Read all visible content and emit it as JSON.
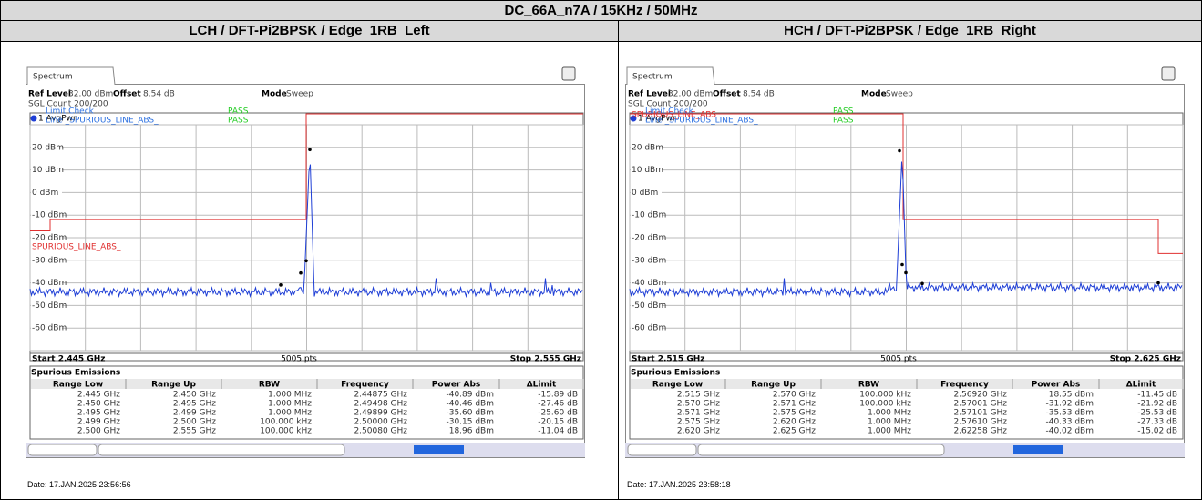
{
  "header": {
    "title": "DC_66A_n7A / 15KHz / 50MHz"
  },
  "panels": [
    {
      "heading": "LCH / DFT-Pi2BPSK / Edge_1RB_Left",
      "screen": {
        "tab": "Spectrum",
        "ref_level_label": "Ref Level",
        "ref_level": "32.00 dBm",
        "offset_label": "Offset",
        "offset": "8.54 dB",
        "mode_label": "Mode",
        "mode": "Sweep",
        "sgl_count": "SGL Count 200/200",
        "trace": "1 AvgPwr",
        "limit_check": "Limit Check",
        "limit_check_result": "PASS",
        "line": "Line _SPURIOUS_LINE_ABS_",
        "line_result": "PASS",
        "limit_line_label": "SPURIOUS_LINE_ABS_",
        "y_labels": [
          "20 dBm",
          "10 dBm",
          "0 dBm",
          "-10 dBm",
          "-20 dBm",
          "-30 dBm",
          "-40 dBm",
          "-50 dBm",
          "-60 dBm"
        ],
        "start": "Start 2.445 GHz",
        "points": "5005 pts",
        "stop": "Stop 2.555 GHz",
        "table_title": "Spurious Emissions",
        "columns": [
          "Range Low",
          "Range Up",
          "RBW",
          "Frequency",
          "Power Abs",
          "ΔLimit"
        ],
        "rows": [
          [
            "2.445 GHz",
            "2.450 GHz",
            "1.000 MHz",
            "2.44875 GHz",
            "-40.89 dBm",
            "-15.89 dB"
          ],
          [
            "2.450 GHz",
            "2.495 GHz",
            "1.000 MHz",
            "2.49498 GHz",
            "-40.46 dBm",
            "-27.46 dB"
          ],
          [
            "2.495 GHz",
            "2.499 GHz",
            "1.000 MHz",
            "2.49899 GHz",
            "-35.60 dBm",
            "-25.60 dB"
          ],
          [
            "2.499 GHz",
            "2.500 GHz",
            "100.000 kHz",
            "2.50000 GHz",
            "-30.15 dBm",
            "-20.15 dB"
          ],
          [
            "2.500 GHz",
            "2.555 GHz",
            "100.000 kHz",
            "2.50080 GHz",
            "18.96 dBm",
            "-11.04 dB"
          ]
        ]
      },
      "date": "Date: 17.JAN.2025 23:56:56"
    },
    {
      "heading": "HCH / DFT-Pi2BPSK / Edge_1RB_Right",
      "screen": {
        "tab": "Spectrum",
        "ref_level_label": "Ref Level",
        "ref_level": "32.00 dBm",
        "offset_label": "Offset",
        "offset": "8.54 dB",
        "mode_label": "Mode",
        "mode": "Sweep",
        "sgl_count": "SGL Count 200/200",
        "trace": "1 AvgPwr",
        "limit_check": "Limit Check",
        "limit_check_result": "PASS",
        "line": "Line _SPURIOUS_LINE_ABS_",
        "line_result": "PASS",
        "limit_line_label": "SPURIOUS_LINE_ABS",
        "y_labels": [
          "20 dBm",
          "10 dBm",
          "0 dBm",
          "-10 dBm",
          "-20 dBm",
          "-30 dBm",
          "-40 dBm",
          "-50 dBm",
          "-60 dBm"
        ],
        "start": "Start 2.515 GHz",
        "points": "5005 pts",
        "stop": "Stop 2.625 GHz",
        "table_title": "Spurious Emissions",
        "columns": [
          "Range Low",
          "Range Up",
          "RBW",
          "Frequency",
          "Power Abs",
          "ΔLimit"
        ],
        "rows": [
          [
            "2.515 GHz",
            "2.570 GHz",
            "100.000 kHz",
            "2.56920 GHz",
            "18.55 dBm",
            "-11.45 dB"
          ],
          [
            "2.570 GHz",
            "2.571 GHz",
            "100.000 kHz",
            "2.57001 GHz",
            "-31.92 dBm",
            "-21.92 dB"
          ],
          [
            "2.571 GHz",
            "2.575 GHz",
            "1.000 MHz",
            "2.57101 GHz",
            "-35.53 dBm",
            "-25.53 dB"
          ],
          [
            "2.575 GHz",
            "2.620 GHz",
            "1.000 MHz",
            "2.57610 GHz",
            "-40.33 dBm",
            "-27.33 dB"
          ],
          [
            "2.620 GHz",
            "2.625 GHz",
            "1.000 MHz",
            "2.62258 GHz",
            "-40.02 dBm",
            "-15.02 dB"
          ]
        ]
      },
      "date": "Date: 17.JAN.2025 23:58:18"
    }
  ]
}
